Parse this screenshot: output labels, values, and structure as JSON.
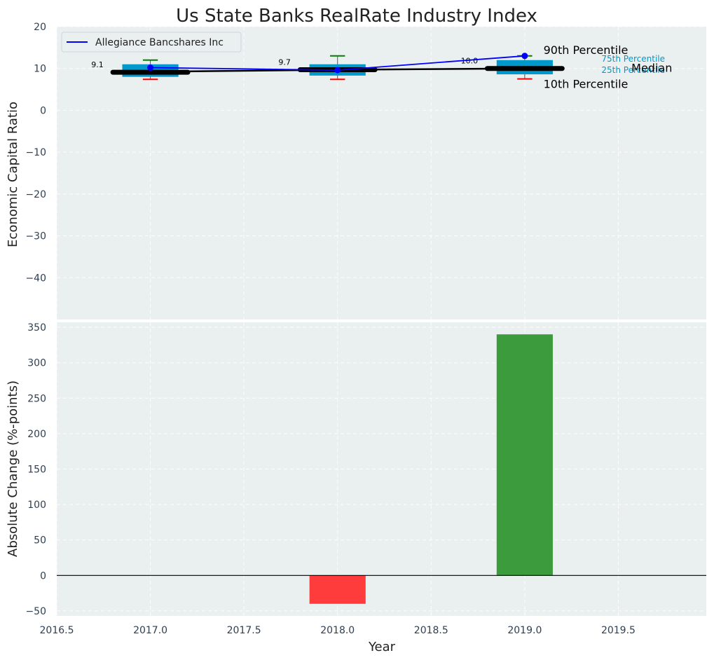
{
  "chart_data": {
    "title": "Us State Banks RealRate Industry Index",
    "xlabel": "Year",
    "x_ticks": [
      "2016.5",
      "2017.0",
      "2017.5",
      "2018.0",
      "2018.5",
      "2019.0",
      "2019.5"
    ],
    "xlim": [
      2016.5,
      2019.97
    ],
    "colors": {
      "background": "#eaeff0",
      "box": "#0099cc",
      "company": "#0000ff",
      "median": "#000000",
      "p90": "#008000",
      "p10": "#ff0000",
      "positive": "#3c9b3c",
      "negative": "#ff3c3c"
    },
    "top": {
      "type": "box",
      "ylabel": "Economic Capital Ratio",
      "ylim": [
        -50,
        20
      ],
      "y_ticks": [
        "20",
        "10",
        "0",
        "−10",
        "−20",
        "−30",
        "−40"
      ],
      "legend": {
        "label": "Allegiance Bancshares Inc",
        "position": "top-left"
      },
      "years": [
        2017,
        2018,
        2019
      ],
      "median": [
        9.1,
        9.7,
        10.0
      ],
      "median_labels": [
        "9.1",
        "9.7",
        "10.0"
      ],
      "p25": [
        8.0,
        8.3,
        8.6
      ],
      "p75": [
        11.0,
        11.0,
        12.0
      ],
      "p10": [
        7.4,
        7.4,
        7.5
      ],
      "p90": [
        12.0,
        13.0,
        13.0
      ],
      "company": [
        10.2,
        9.6,
        13.0
      ],
      "annotations": {
        "p90": "90th Percentile",
        "p10": "10th Percentile",
        "median": "Median",
        "p75": "75th Percentile",
        "p25": "25th Percentile"
      }
    },
    "bottom": {
      "type": "bar",
      "ylabel": "Absolute Change (%-points)",
      "ylim": [
        -57,
        357
      ],
      "y_ticks": [
        "350",
        "300",
        "250",
        "200",
        "150",
        "100",
        "50",
        "0",
        "−50"
      ],
      "years": [
        2018,
        2019
      ],
      "values": [
        -40,
        340
      ]
    }
  }
}
